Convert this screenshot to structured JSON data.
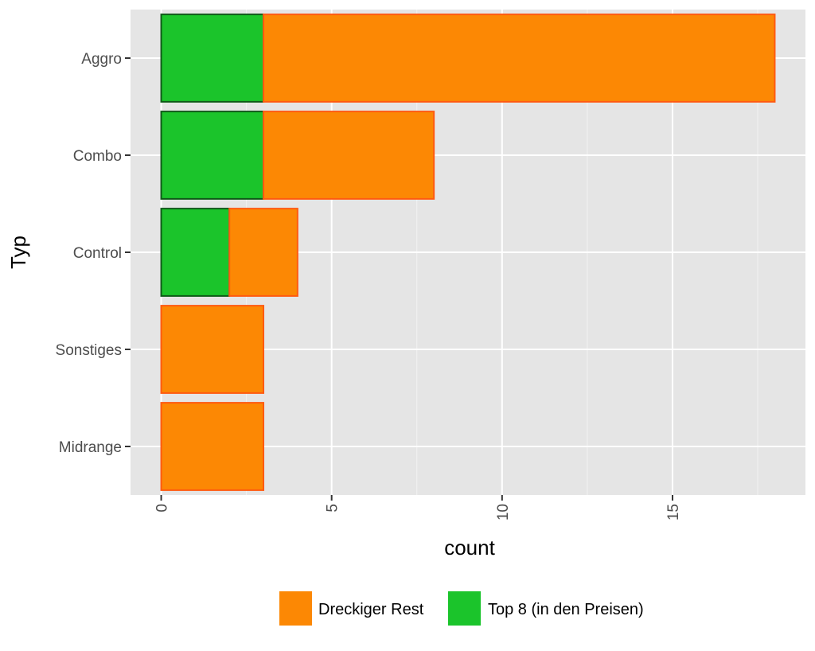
{
  "chart_data": {
    "type": "bar",
    "orientation": "horizontal",
    "stacked": true,
    "categories": [
      "Aggro",
      "Combo",
      "Control",
      "Sonstiges",
      "Midrange"
    ],
    "series": [
      {
        "name": "Top 8 (in den Preisen)",
        "values": [
          3,
          3,
          2,
          0,
          0
        ],
        "color": "#1bc42b",
        "stroke": "#0e5a18"
      },
      {
        "name": "Dreckiger Rest",
        "values": [
          15,
          5,
          2,
          3,
          3
        ],
        "color": "#fc8804",
        "stroke": "#ff5a10"
      }
    ],
    "xlabel": "count",
    "ylabel": "Typ",
    "xlim": [
      -0.9,
      18.9
    ],
    "xticks": [
      0,
      5,
      10,
      15
    ],
    "panel_background": "#e5e5e5",
    "grid": true,
    "legend": {
      "position": "bottom",
      "items": [
        "Dreckiger Rest",
        "Top 8 (in den Preisen)"
      ]
    }
  }
}
